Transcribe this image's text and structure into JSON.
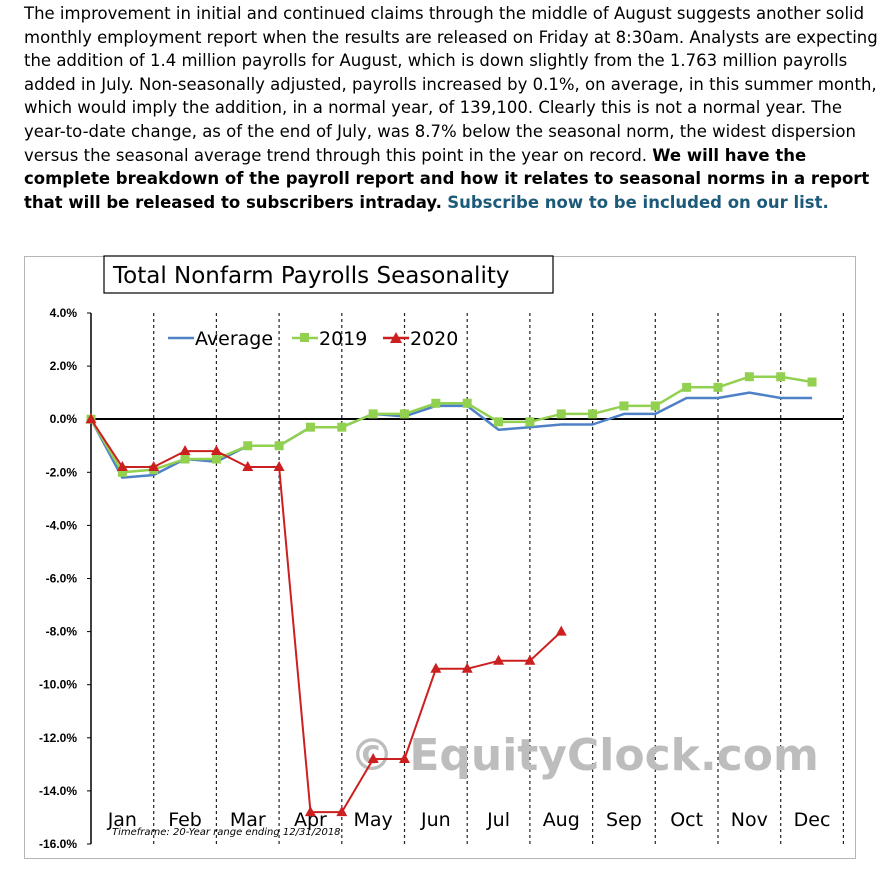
{
  "article": {
    "p1": "The improvement in initial and continued claims through the middle of August suggests another solid monthly employment report when the results are released on Friday at 8:30am.  Analysts are expecting the addition of 1.4 million payrolls for August, which is down slightly from the 1.763 million payrolls added in July.  Non-seasonally adjusted, payrolls increased by 0.1%, on average, in this summer month, which would imply the addition, in a normal year, of 139,100.  Clearly this is not a normal year.  The year-to-date change, as of the end of July, was 8.7% below the seasonal norm, the widest dispersion versus the seasonal average trend through this point in the year on record. ",
    "bold": "We will have the complete breakdown of the payroll report and how it relates to seasonal norms in a report that will be released to subscribers intraday.",
    "link": "Subscribe now to be included on our list."
  },
  "chart_data": {
    "type": "line",
    "title": "Total Nonfarm Payrolls Seasonality",
    "categories": [
      "Jan",
      "Feb",
      "Mar",
      "Apr",
      "May",
      "Jun",
      "Jul",
      "Aug",
      "Sep",
      "Oct",
      "Nov",
      "Dec"
    ],
    "y_tick_labels": [
      "4.0%",
      "2.0%",
      "0.0%",
      "-2.0%",
      "-4.0%",
      "-6.0%",
      "-8.0%",
      "-10.0%",
      "-12.0%",
      "-14.0%",
      "-16.0%"
    ],
    "ylim": [
      -16,
      4
    ],
    "grid": "vertical dashed",
    "legend": "top",
    "series": [
      {
        "name": "Average",
        "color": "#4f81c7",
        "marker": "none",
        "x": [
          0,
          0.5,
          1,
          1.5,
          2,
          2.5,
          3,
          3.5,
          4,
          4.5,
          5,
          5.5,
          6,
          6.5,
          7,
          7.5,
          8,
          8.5,
          9,
          9.5,
          10,
          10.5,
          11,
          11.5
        ],
        "values": [
          0.0,
          -2.2,
          -2.1,
          -1.5,
          -1.6,
          -1.0,
          -1.0,
          -0.3,
          -0.3,
          0.2,
          0.1,
          0.5,
          0.5,
          -0.4,
          -0.3,
          -0.2,
          -0.2,
          0.2,
          0.2,
          0.8,
          0.8,
          1.0,
          0.8,
          0.8
        ]
      },
      {
        "name": "2019",
        "color": "#92d050",
        "marker": "square",
        "x": [
          0,
          0.5,
          1,
          1.5,
          2,
          2.5,
          3,
          3.5,
          4,
          4.5,
          5,
          5.5,
          6,
          6.5,
          7,
          7.5,
          8,
          8.5,
          9,
          9.5,
          10,
          10.5,
          11,
          11.5
        ],
        "values": [
          0.0,
          -2.0,
          -1.9,
          -1.5,
          -1.5,
          -1.0,
          -1.0,
          -0.3,
          -0.3,
          0.2,
          0.2,
          0.6,
          0.6,
          -0.1,
          -0.1,
          0.2,
          0.2,
          0.5,
          0.5,
          1.2,
          1.2,
          1.6,
          1.6,
          1.4
        ]
      },
      {
        "name": "2020",
        "color": "#cc1f1f",
        "marker": "triangle",
        "x": [
          0,
          0.5,
          1,
          1.5,
          2,
          2.5,
          3,
          3.5,
          4,
          4.5,
          5,
          5.5,
          6,
          6.5,
          7,
          7.5
        ],
        "values": [
          0.0,
          -1.8,
          -1.8,
          -1.2,
          -1.2,
          -1.8,
          -1.8,
          -14.8,
          -14.8,
          -12.8,
          -12.8,
          -9.4,
          -9.4,
          -9.1,
          -9.1,
          -8.0
        ]
      }
    ],
    "annotation": "Timeframe: 20-Year range ending 12/31/2018",
    "watermark": "© EquityClock.com"
  }
}
